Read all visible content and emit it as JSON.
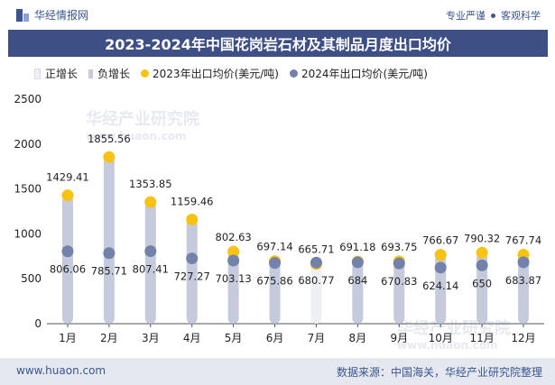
{
  "header": {
    "brand_name": "华经情报网",
    "tagline_left": "专业严谨",
    "tagline_right": "客观科学"
  },
  "title": "2023-2024年中国花岗岩石材及其制品月度出口均价",
  "legend": {
    "positive": "正增长",
    "negative": "负增长",
    "series_2023": "2023年出口均价(美元/吨)",
    "series_2024": "2024年出口均价(美元/吨)"
  },
  "watermark": {
    "text": "华经产业研究院",
    "url": "www.huaon.com"
  },
  "footer": {
    "url": "www.huaon.com",
    "source": "数据来源：中国海关，华经产业研究院整理"
  },
  "colors": {
    "positive_bar": "#eef0f3",
    "negative_bar": "#c5cbdc",
    "series_2023": "#f7c211",
    "series_2024": "#7382a8",
    "title_bg": "#3e4f86"
  },
  "chart_data": {
    "type": "dumbbell",
    "categories": [
      "1月",
      "2月",
      "3月",
      "4月",
      "5月",
      "6月",
      "7月",
      "8月",
      "9月",
      "10月",
      "11月",
      "12月"
    ],
    "series": [
      {
        "name": "2023年出口均价(美元/吨)",
        "values": [
          1429.41,
          1855.56,
          1353.85,
          1159.46,
          802.63,
          697.14,
          665.71,
          691.18,
          693.75,
          766.67,
          790.32,
          767.74
        ]
      },
      {
        "name": "2024年出口均价(美元/吨)",
        "values": [
          806.06,
          785.71,
          807.41,
          727.27,
          703.13,
          675.86,
          680.77,
          684,
          670.83,
          624.14,
          650,
          683.87
        ]
      }
    ],
    "value_labels_2023": [
      "1429.41",
      "1855.56",
      "1353.85",
      "1159.46",
      "802.63",
      "697.14",
      "665.71",
      "691.18",
      "693.75",
      "766.67",
      "790.32",
      "767.74"
    ],
    "value_labels_2024": [
      "806.06",
      "785.71",
      "807.41",
      "727.27",
      "703.13",
      "675.86",
      "680.77",
      "684",
      "670.83",
      "624.14",
      "650",
      "683.87"
    ],
    "ylim": [
      0,
      2500
    ],
    "yticks": [
      0,
      500,
      1000,
      1500,
      2000,
      2500
    ],
    "ytick_labels": [
      "0",
      "500",
      "1000",
      "1500",
      "2000",
      "2500"
    ],
    "grid": false,
    "legend_position": "top"
  }
}
